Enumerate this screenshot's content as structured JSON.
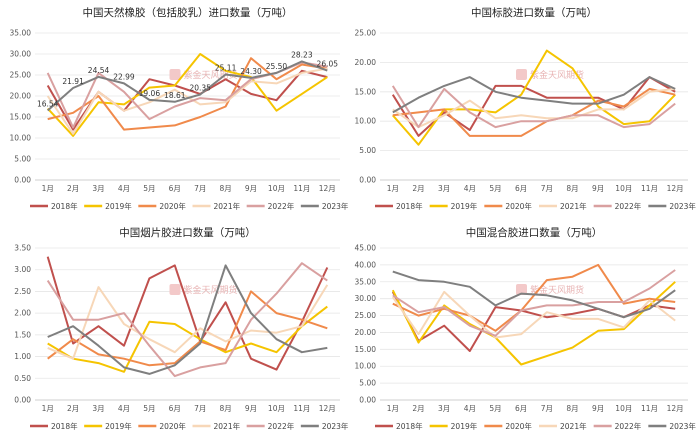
{
  "legend_labels": [
    "2018年",
    "2019年",
    "2020年",
    "2021年",
    "2022年",
    "2023年"
  ],
  "colors": {
    "2018年": "#c0504d",
    "2019年": "#f5c400",
    "2020年": "#f08a4b",
    "2021年": "#f7d7b8",
    "2022年": "#d9a0a0",
    "2023年": "#7f7f7f"
  },
  "watermark": "紫金天风期货",
  "chart_data": [
    {
      "type": "line",
      "title": "中国天然橡胶（包括胶乳）进口数量（万吨）",
      "categories": [
        "1月",
        "2月",
        "3月",
        "4月",
        "5月",
        "6月",
        "7月",
        "8月",
        "9月",
        "10月",
        "11月",
        "12月"
      ],
      "ylim": [
        0,
        35
      ],
      "yticks": [
        "0.00",
        "5.00",
        "10.00",
        "15.00",
        "20.00",
        "25.00",
        "30.00",
        "35.00"
      ],
      "series": [
        {
          "name": "2018年",
          "values": [
            22.5,
            12.0,
            21.0,
            16.5,
            24.0,
            22.5,
            20.5,
            24.0,
            20.5,
            19.0,
            26.0,
            24.5
          ]
        },
        {
          "name": "2019年",
          "values": [
            17.0,
            10.5,
            18.5,
            18.0,
            22.0,
            22.5,
            30.0,
            26.0,
            24.5,
            16.5,
            20.5,
            24.5
          ]
        },
        {
          "name": "2020年",
          "values": [
            14.5,
            16.0,
            20.0,
            12.0,
            12.5,
            13.0,
            15.0,
            17.5,
            29.0,
            24.0,
            27.5,
            26.5
          ]
        },
        {
          "name": "2021年",
          "values": [
            20.0,
            11.0,
            21.0,
            16.5,
            18.5,
            21.5,
            18.0,
            18.5,
            23.5,
            23.0,
            25.5,
            26.5
          ]
        },
        {
          "name": "2022年",
          "values": [
            25.5,
            12.5,
            25.5,
            21.0,
            14.5,
            17.5,
            19.5,
            19.0,
            24.0,
            25.5,
            28.0,
            27.0
          ]
        },
        {
          "name": "2023年",
          "values": [
            16.54,
            21.91,
            24.54,
            22.99,
            19.06,
            18.61,
            20.35,
            25.11,
            24.3,
            25.5,
            28.23,
            26.05
          ]
        }
      ],
      "data_labels": [
        "16.54",
        "21.91",
        "24.54",
        "22.99",
        "19.06",
        "18.61",
        "20.35",
        "25.11",
        "24.30",
        "25.50",
        "28.23",
        "26.05"
      ]
    },
    {
      "type": "line",
      "title": "中国标胶进口数量（万吨）",
      "categories": [
        "1月",
        "2月",
        "3月",
        "4月",
        "5月",
        "6月",
        "7月",
        "8月",
        "9月",
        "10月",
        "11月",
        "12月"
      ],
      "ylim": [
        0,
        25
      ],
      "yticks": [
        "0.00",
        "5.00",
        "10.00",
        "15.00",
        "20.00",
        "25.00"
      ],
      "series": [
        {
          "name": "2018年",
          "values": [
            14.5,
            7.5,
            11.5,
            8.5,
            16.0,
            16.0,
            14.0,
            14.0,
            14.0,
            12.0,
            17.5,
            15.0
          ]
        },
        {
          "name": "2019年",
          "values": [
            11.0,
            6.0,
            12.0,
            12.0,
            11.5,
            14.5,
            22.0,
            19.0,
            12.5,
            9.5,
            10.0,
            14.5
          ]
        },
        {
          "name": "2020年",
          "values": [
            11.0,
            11.5,
            12.0,
            7.5,
            7.5,
            7.5,
            10.0,
            11.0,
            13.5,
            12.5,
            15.5,
            14.5
          ]
        },
        {
          "name": "2021年",
          "values": [
            12.0,
            9.0,
            11.0,
            13.5,
            10.5,
            11.0,
            10.5,
            10.5,
            12.0,
            12.0,
            15.0,
            15.5
          ]
        },
        {
          "name": "2022年",
          "values": [
            16.0,
            9.0,
            15.5,
            11.5,
            9.0,
            10.0,
            10.0,
            11.0,
            11.0,
            9.0,
            9.5,
            13.0
          ]
        },
        {
          "name": "2023年",
          "values": [
            11.5,
            14.0,
            16.0,
            17.5,
            15.0,
            14.0,
            13.5,
            13.0,
            13.0,
            14.5,
            17.5,
            15.5
          ]
        }
      ]
    },
    {
      "type": "line",
      "title": "中国烟片胶进口数量（万吨）",
      "categories": [
        "1月",
        "2月",
        "3月",
        "4月",
        "5月",
        "6月",
        "7月",
        "8月",
        "9月",
        "10月",
        "11月",
        "12月"
      ],
      "ylim": [
        0,
        3.5
      ],
      "yticks": [
        "0.00",
        "0.50",
        "1.00",
        "1.50",
        "2.00",
        "2.50",
        "3.00",
        "3.50"
      ],
      "series": [
        {
          "name": "2018年",
          "values": [
            3.3,
            1.3,
            1.7,
            1.25,
            2.8,
            3.1,
            1.35,
            2.25,
            0.95,
            0.7,
            1.8,
            3.05
          ]
        },
        {
          "name": "2019年",
          "values": [
            1.3,
            0.95,
            0.85,
            0.65,
            1.8,
            1.75,
            1.4,
            1.1,
            1.3,
            1.1,
            1.7,
            2.15
          ]
        },
        {
          "name": "2020年",
          "values": [
            0.95,
            1.4,
            1.05,
            0.95,
            0.8,
            0.85,
            1.35,
            1.15,
            2.5,
            2.0,
            1.85,
            1.65
          ]
        },
        {
          "name": "2021年",
          "values": [
            1.2,
            0.95,
            2.6,
            1.75,
            1.4,
            1.1,
            1.65,
            1.35,
            1.6,
            1.55,
            1.7,
            2.65
          ]
        },
        {
          "name": "2022年",
          "values": [
            2.75,
            1.85,
            1.85,
            2.0,
            1.25,
            0.55,
            0.75,
            0.85,
            1.85,
            2.45,
            3.15,
            2.75
          ]
        },
        {
          "name": "2023年",
          "values": [
            1.45,
            1.7,
            1.25,
            0.75,
            0.6,
            0.8,
            1.3,
            3.1,
            2.0,
            1.4,
            1.1,
            1.2
          ]
        }
      ]
    },
    {
      "type": "line",
      "title": "中国混合胶进口数量（万吨）",
      "categories": [
        "1月",
        "2月",
        "3月",
        "4月",
        "5月",
        "6月",
        "7月",
        "8月",
        "9月",
        "10月",
        "11月",
        "12月"
      ],
      "ylim": [
        0,
        45
      ],
      "yticks": [
        "0.00",
        "5.00",
        "10.00",
        "15.00",
        "20.00",
        "25.00",
        "30.00",
        "35.00",
        "40.00",
        "45.00"
      ],
      "series": [
        {
          "name": "2018年",
          "values": [
            32.0,
            17.5,
            22.0,
            14.5,
            27.5,
            26.5,
            24.5,
            25.5,
            27.0,
            24.5,
            28.0,
            27.0
          ]
        },
        {
          "name": "2019年",
          "values": [
            32.5,
            17.0,
            28.0,
            22.5,
            18.5,
            10.5,
            13.0,
            15.5,
            20.5,
            21.0,
            28.0,
            35.0
          ]
        },
        {
          "name": "2020年",
          "values": [
            28.5,
            25.0,
            27.0,
            25.0,
            20.5,
            26.5,
            35.5,
            36.5,
            40.0,
            28.5,
            30.0,
            29.0
          ]
        },
        {
          "name": "2021年",
          "values": [
            30.5,
            19.5,
            32.0,
            25.0,
            18.5,
            19.5,
            26.0,
            24.0,
            24.0,
            21.5,
            29.5,
            23.5
          ]
        },
        {
          "name": "2022年",
          "values": [
            31.0,
            26.0,
            27.5,
            22.0,
            19.0,
            26.5,
            28.0,
            28.0,
            29.0,
            29.0,
            33.0,
            38.5
          ]
        },
        {
          "name": "2023年",
          "values": [
            38.0,
            35.5,
            35.0,
            33.5,
            28.0,
            31.5,
            31.0,
            29.5,
            27.0,
            24.5,
            27.0,
            32.5
          ]
        }
      ]
    }
  ]
}
